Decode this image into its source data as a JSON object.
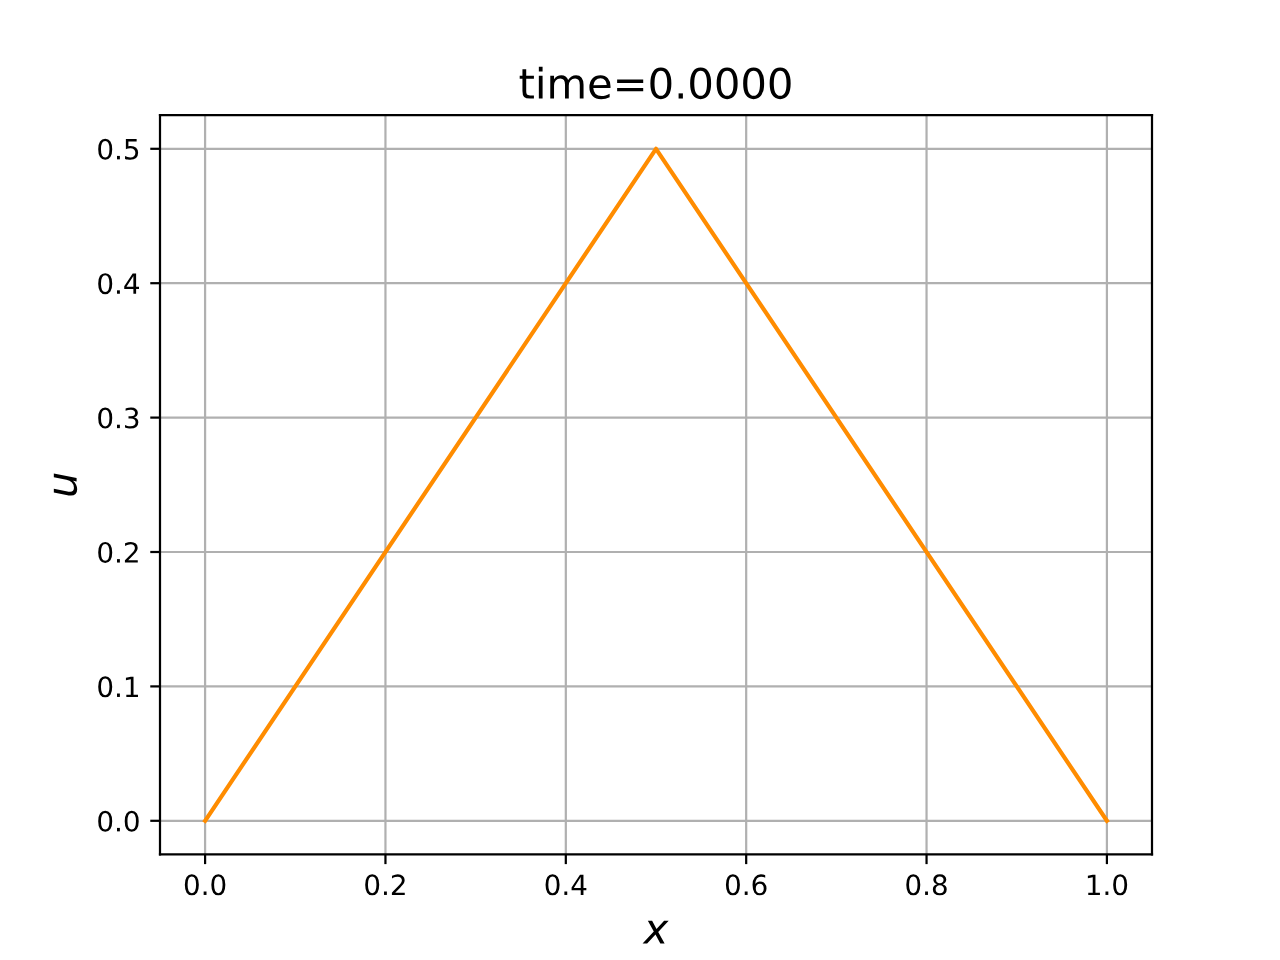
{
  "chart_data": {
    "type": "line",
    "title": "time=0.0000",
    "xlabel": "x",
    "ylabel": "u",
    "x": [
      0.0,
      0.5,
      1.0
    ],
    "series": [
      {
        "color": "#ff8c00",
        "values": [
          0.0,
          0.5,
          0.0
        ]
      }
    ],
    "xlim": [
      -0.05,
      1.05
    ],
    "ylim": [
      -0.025,
      0.525
    ],
    "xticks": [
      {
        "value": 0.0,
        "label": "0.0"
      },
      0.2,
      0.4,
      0.6,
      0.8,
      {
        "value": 1.0,
        "label": "1.0"
      }
    ],
    "yticks": [
      {
        "value": 0.0,
        "label": "0.0"
      },
      0.1,
      0.2,
      0.3,
      0.4,
      0.5
    ],
    "grid": true,
    "marker": "none",
    "line_style": "solid"
  }
}
